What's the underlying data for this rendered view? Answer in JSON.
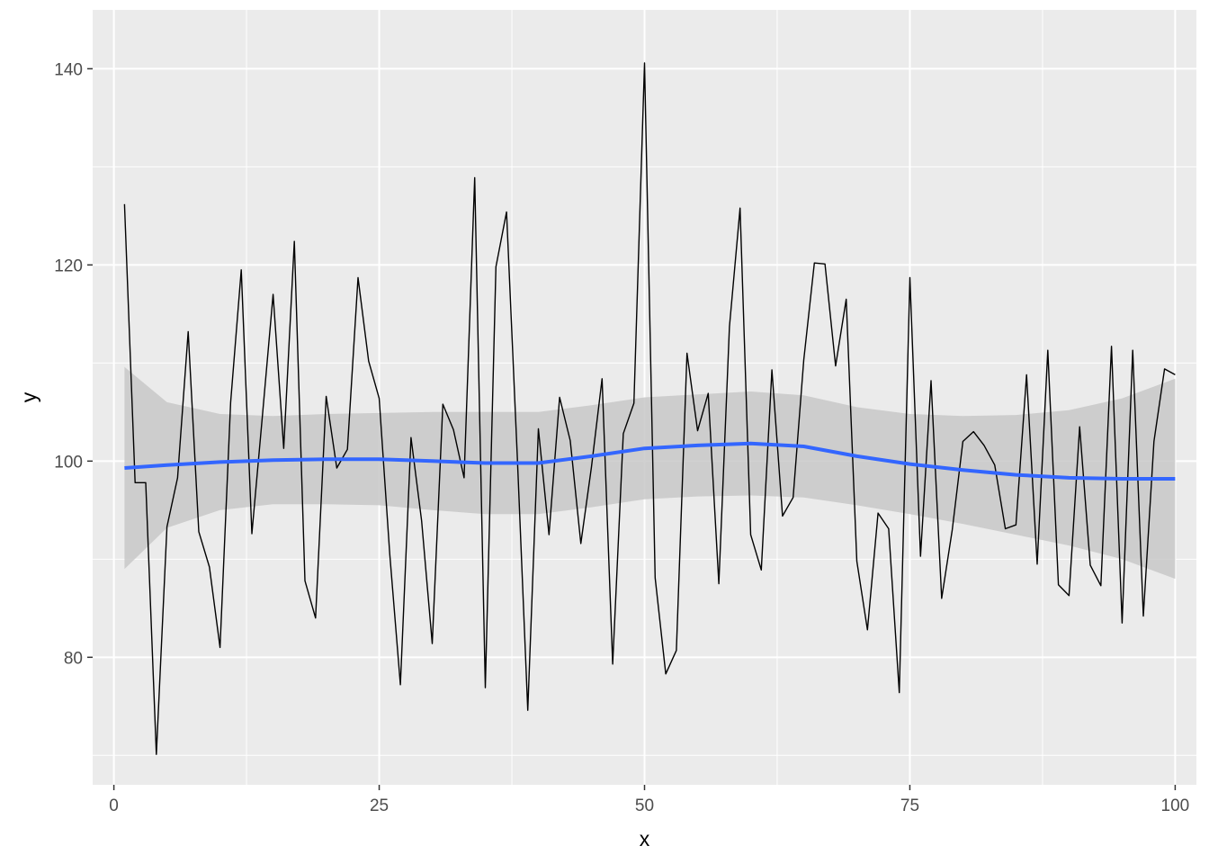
{
  "chart_data": {
    "type": "line",
    "title": "",
    "xlabel": "x",
    "ylabel": "y",
    "xlim": [
      -2,
      102
    ],
    "ylim": [
      67,
      146
    ],
    "x_ticks": [
      0,
      25,
      50,
      75,
      100
    ],
    "x_tick_labels": [
      "0",
      "25",
      "50",
      "75",
      "100"
    ],
    "y_ticks": [
      80,
      100,
      120,
      140
    ],
    "y_tick_labels": [
      "80",
      "100",
      "120",
      "140"
    ],
    "grid": true,
    "legend": "none",
    "colors": {
      "panel_background": "#ebebeb",
      "grid": "#ffffff",
      "line": "#000000",
      "smooth": "#3366ff",
      "ribbon": "#c8c8c8"
    },
    "series": [
      {
        "kind": "line",
        "x": [
          1,
          2,
          3,
          4,
          5,
          6,
          7,
          8,
          9,
          10,
          11,
          12,
          13,
          14,
          15,
          16,
          17,
          18,
          19,
          20,
          21,
          22,
          23,
          24,
          25,
          26,
          27,
          28,
          29,
          30,
          31,
          32,
          33,
          34,
          35,
          36,
          37,
          38,
          39,
          40,
          41,
          42,
          43,
          44,
          45,
          46,
          47,
          48,
          49,
          50,
          51,
          52,
          53,
          54,
          55,
          56,
          57,
          58,
          59,
          60,
          61,
          62,
          63,
          64,
          65,
          66,
          67,
          68,
          69,
          70,
          71,
          72,
          73,
          74,
          75,
          76,
          77,
          78,
          79,
          80,
          81,
          82,
          83,
          84,
          85,
          86,
          87,
          88,
          89,
          90,
          91,
          92,
          93,
          94,
          95,
          96,
          97,
          98,
          99,
          100
        ],
        "y": [
          126.2,
          97.8,
          97.8,
          70.1,
          93.3,
          98.3,
          113.2,
          92.8,
          89.2,
          81.0,
          106.0,
          119.5,
          92.6,
          104.7,
          117.0,
          101.3,
          122.4,
          87.8,
          84.0,
          106.6,
          99.3,
          101.2,
          118.7,
          110.2,
          106.4,
          90.5,
          77.2,
          102.4,
          93.9,
          81.4,
          105.8,
          103.2,
          98.3,
          128.9,
          76.9,
          119.8,
          125.4,
          100.8,
          74.6,
          103.3,
          92.5,
          106.5,
          102.1,
          91.6,
          99.4,
          108.4,
          79.3,
          102.8,
          105.9,
          140.6,
          88.1,
          78.3,
          80.7,
          111.0,
          103.1,
          106.9,
          87.5,
          113.7,
          125.8,
          92.5,
          88.9,
          109.3,
          94.4,
          96.3,
          110.3,
          120.2,
          120.1,
          109.7,
          116.5,
          89.8,
          82.8,
          94.7,
          93.1,
          76.4,
          118.7,
          90.3,
          108.2,
          86.0,
          93.0,
          102.0,
          103.0,
          101.6,
          99.6,
          93.1,
          93.5,
          108.8,
          89.5,
          111.3,
          87.4,
          86.3,
          103.5,
          89.4,
          87.3,
          111.7,
          83.5,
          111.3,
          84.2,
          102.0,
          109.4,
          108.8
        ]
      },
      {
        "kind": "smooth",
        "x": [
          1,
          5,
          10,
          15,
          20,
          25,
          30,
          35,
          40,
          45,
          50,
          55,
          60,
          65,
          70,
          75,
          80,
          85,
          90,
          95,
          100
        ],
        "y": [
          99.3,
          99.6,
          99.9,
          100.1,
          100.2,
          100.2,
          100.0,
          99.8,
          99.8,
          100.5,
          101.3,
          101.6,
          101.8,
          101.5,
          100.5,
          99.7,
          99.1,
          98.6,
          98.3,
          98.2,
          98.2
        ],
        "lower": [
          89.0,
          93.2,
          95.0,
          95.6,
          95.6,
          95.5,
          95.0,
          94.6,
          94.6,
          95.3,
          96.1,
          96.4,
          96.5,
          96.3,
          95.5,
          94.6,
          93.6,
          92.5,
          91.4,
          90.0,
          88.0
        ],
        "upper": [
          109.6,
          106.0,
          104.8,
          104.6,
          104.8,
          104.9,
          105.0,
          105.0,
          105.0,
          105.7,
          106.5,
          106.8,
          107.1,
          106.7,
          105.5,
          104.8,
          104.6,
          104.7,
          105.2,
          106.4,
          108.4
        ]
      }
    ]
  }
}
